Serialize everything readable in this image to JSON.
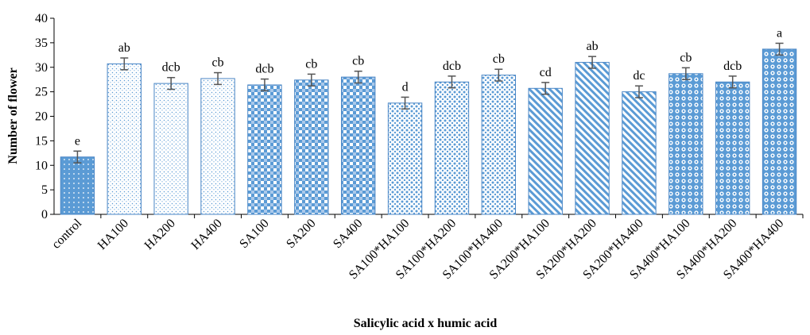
{
  "chart_data": {
    "type": "bar",
    "xlabel": "Salicylic acid x humic acid",
    "ylabel": "Number  of flower",
    "ylim": [
      0,
      40
    ],
    "yticks": [
      0,
      5,
      10,
      15,
      20,
      25,
      30,
      35,
      40
    ],
    "categories": [
      "control",
      "HA100",
      "HA200",
      "HA400",
      "SA100",
      "SA200",
      "SA400",
      "SA100*HA100",
      "SA100*HA200",
      "SA100*HA400",
      "SA200*HA100",
      "SA200*HA200",
      "SA200*HA400",
      "SA400*HA100",
      "SA400*HA200",
      "SA400*HA400"
    ],
    "values": [
      11.7,
      30.7,
      26.7,
      27.7,
      26.4,
      27.4,
      28.0,
      22.7,
      27.0,
      28.4,
      25.7,
      31.0,
      25.0,
      28.7,
      27.0,
      33.7
    ],
    "errors": [
      1.2,
      1.2,
      1.2,
      1.2,
      1.2,
      1.2,
      1.2,
      1.2,
      1.2,
      1.2,
      1.2,
      1.2,
      1.2,
      1.2,
      1.2,
      1.2
    ],
    "significance_letters": [
      "e",
      "ab",
      "dcb",
      "cb",
      "dcb",
      "cb",
      "cb",
      "d",
      "dcb",
      "cb",
      "cd",
      "ab",
      "dc",
      "cb",
      "dcb",
      "a"
    ],
    "grid": false,
    "legend": "none",
    "patterns": [
      "solid-dots",
      "sparse-dots",
      "sparse-dots",
      "sparse-dots",
      "checker",
      "checker",
      "checker",
      "dots",
      "dots",
      "dots",
      "diagonal",
      "diagonal",
      "diagonal",
      "large-dots",
      "large-dots",
      "large-dots"
    ],
    "colors": {
      "primary": "#5b9bd5",
      "dark": "#2e75b6",
      "edge": "#4a86c5",
      "error_bar": "#555555",
      "axis": "#000000"
    }
  }
}
